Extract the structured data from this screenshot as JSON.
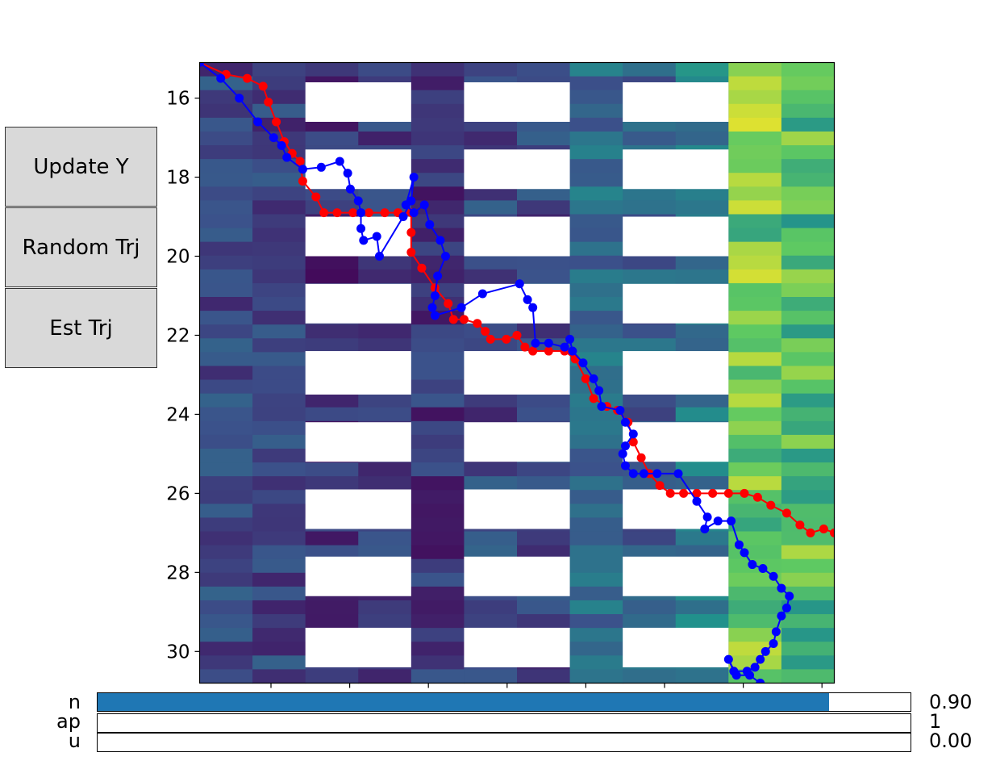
{
  "buttons": {
    "update_y": "Update Y",
    "random_trj": "Random Trj",
    "est_trj": "Est Trj"
  },
  "sliders": [
    {
      "label": "n",
      "value_text": "0.90",
      "fraction": 0.9
    },
    {
      "label": "ap",
      "value_text": "1",
      "fraction": 0.0
    },
    {
      "label": "u",
      "value_text": "0.00",
      "fraction": 0.0
    }
  ],
  "colors": {
    "true_trajectory": "#ff0000",
    "estimated_trajectory": "#0000ff",
    "slider_fill": "#1f77b4",
    "colormap": "viridis"
  },
  "chart_data": {
    "type": "heatmap",
    "ylim": [
      15.1,
      30.8
    ],
    "yticks": [
      16,
      18,
      20,
      22,
      24,
      26,
      28,
      30
    ],
    "xticks_count": 8,
    "columns": 12,
    "white_blocks": {
      "columns": [
        [
          2,
          3
        ],
        [
          5,
          6
        ],
        [
          8,
          9
        ]
      ],
      "rows": [
        [
          15.6,
          16.6
        ],
        [
          17.3,
          18.3
        ],
        [
          19.0,
          20.0
        ],
        [
          20.7,
          21.7
        ],
        [
          22.4,
          23.5
        ],
        [
          24.2,
          25.2
        ],
        [
          25.9,
          26.9
        ],
        [
          27.6,
          28.6
        ],
        [
          29.4,
          30.4
        ]
      ]
    },
    "series": [
      {
        "color": "red",
        "points": [
          [
            0.0,
            15.1
          ],
          [
            0.5,
            15.4
          ],
          [
            0.9,
            15.5
          ],
          [
            1.2,
            15.7
          ],
          [
            1.3,
            16.1
          ],
          [
            1.45,
            16.6
          ],
          [
            1.6,
            17.1
          ],
          [
            1.75,
            17.4
          ],
          [
            1.9,
            17.6
          ],
          [
            1.95,
            18.1
          ],
          [
            2.2,
            18.5
          ],
          [
            2.35,
            18.9
          ],
          [
            2.6,
            18.9
          ],
          [
            2.9,
            18.9
          ],
          [
            3.2,
            18.9
          ],
          [
            3.5,
            18.9
          ],
          [
            3.75,
            18.9
          ],
          [
            4.0,
            18.9
          ],
          [
            4.0,
            19.4
          ],
          [
            4.0,
            19.9
          ],
          [
            4.2,
            20.3
          ],
          [
            4.45,
            20.8
          ],
          [
            4.7,
            21.2
          ],
          [
            4.8,
            21.6
          ],
          [
            5.0,
            21.6
          ],
          [
            5.25,
            21.7
          ],
          [
            5.4,
            21.9
          ],
          [
            5.5,
            22.1
          ],
          [
            5.8,
            22.1
          ],
          [
            6.0,
            22.0
          ],
          [
            6.15,
            22.3
          ],
          [
            6.3,
            22.4
          ],
          [
            6.6,
            22.4
          ],
          [
            6.9,
            22.4
          ],
          [
            7.1,
            22.6
          ],
          [
            7.3,
            23.1
          ],
          [
            7.45,
            23.6
          ],
          [
            7.7,
            23.8
          ],
          [
            7.9,
            23.9
          ],
          [
            8.1,
            24.2
          ],
          [
            8.2,
            24.7
          ],
          [
            8.35,
            25.1
          ],
          [
            8.5,
            25.5
          ],
          [
            8.7,
            25.8
          ],
          [
            8.9,
            26.0
          ],
          [
            9.15,
            26.0
          ],
          [
            9.4,
            26.0
          ],
          [
            9.7,
            26.0
          ],
          [
            10.0,
            26.0
          ],
          [
            10.3,
            26.0
          ],
          [
            10.55,
            26.1
          ],
          [
            10.8,
            26.3
          ],
          [
            11.1,
            26.5
          ],
          [
            11.35,
            26.8
          ],
          [
            11.55,
            27.0
          ],
          [
            11.8,
            26.9
          ],
          [
            12.0,
            27.0
          ]
        ]
      },
      {
        "color": "blue",
        "points": [
          [
            0.0,
            15.1
          ],
          [
            0.4,
            15.5
          ],
          [
            0.75,
            16.0
          ],
          [
            1.1,
            16.6
          ],
          [
            1.4,
            17.0
          ],
          [
            1.55,
            17.2
          ],
          [
            1.65,
            17.5
          ],
          [
            1.95,
            17.8
          ],
          [
            2.3,
            17.75
          ],
          [
            2.65,
            17.6
          ],
          [
            2.8,
            17.9
          ],
          [
            2.85,
            18.3
          ],
          [
            3.0,
            18.6
          ],
          [
            3.05,
            18.9
          ],
          [
            3.05,
            19.3
          ],
          [
            3.1,
            19.6
          ],
          [
            3.35,
            19.5
          ],
          [
            3.4,
            20.0
          ],
          [
            3.85,
            19.0
          ],
          [
            4.0,
            18.6
          ],
          [
            4.05,
            18.0
          ],
          [
            3.9,
            18.7
          ],
          [
            4.05,
            18.9
          ],
          [
            4.25,
            18.7
          ],
          [
            4.35,
            19.2
          ],
          [
            4.55,
            19.6
          ],
          [
            4.65,
            20.0
          ],
          [
            4.5,
            20.5
          ],
          [
            4.45,
            21.0
          ],
          [
            4.4,
            21.3
          ],
          [
            4.45,
            21.5
          ],
          [
            4.95,
            21.3
          ],
          [
            5.35,
            20.95
          ],
          [
            6.05,
            20.7
          ],
          [
            6.2,
            21.1
          ],
          [
            6.3,
            21.3
          ],
          [
            6.35,
            22.2
          ],
          [
            6.6,
            22.2
          ],
          [
            6.9,
            22.3
          ],
          [
            7.0,
            22.1
          ],
          [
            7.05,
            22.4
          ],
          [
            7.25,
            22.7
          ],
          [
            7.45,
            23.1
          ],
          [
            7.55,
            23.4
          ],
          [
            7.6,
            23.8
          ],
          [
            7.95,
            23.9
          ],
          [
            8.05,
            24.2
          ],
          [
            8.2,
            24.5
          ],
          [
            8.05,
            24.8
          ],
          [
            8.0,
            25.0
          ],
          [
            8.05,
            25.3
          ],
          [
            8.2,
            25.5
          ],
          [
            8.4,
            25.5
          ],
          [
            8.65,
            25.5
          ],
          [
            9.05,
            25.5
          ],
          [
            9.4,
            26.2
          ],
          [
            9.6,
            26.6
          ],
          [
            9.55,
            26.9
          ],
          [
            9.8,
            26.7
          ],
          [
            10.05,
            26.7
          ],
          [
            10.2,
            27.3
          ],
          [
            10.3,
            27.5
          ],
          [
            10.45,
            27.8
          ],
          [
            10.65,
            27.9
          ],
          [
            10.85,
            28.1
          ],
          [
            11.0,
            28.4
          ],
          [
            11.15,
            28.6
          ],
          [
            11.1,
            28.9
          ],
          [
            11.0,
            29.1
          ],
          [
            10.9,
            29.5
          ],
          [
            10.85,
            29.8
          ],
          [
            10.7,
            30.0
          ],
          [
            10.6,
            30.2
          ],
          [
            10.5,
            30.4
          ],
          [
            10.35,
            30.5
          ],
          [
            10.1,
            30.5
          ],
          [
            10.0,
            30.2
          ],
          [
            10.15,
            30.6
          ],
          [
            10.4,
            30.6
          ],
          [
            10.6,
            30.8
          ]
        ]
      }
    ]
  }
}
